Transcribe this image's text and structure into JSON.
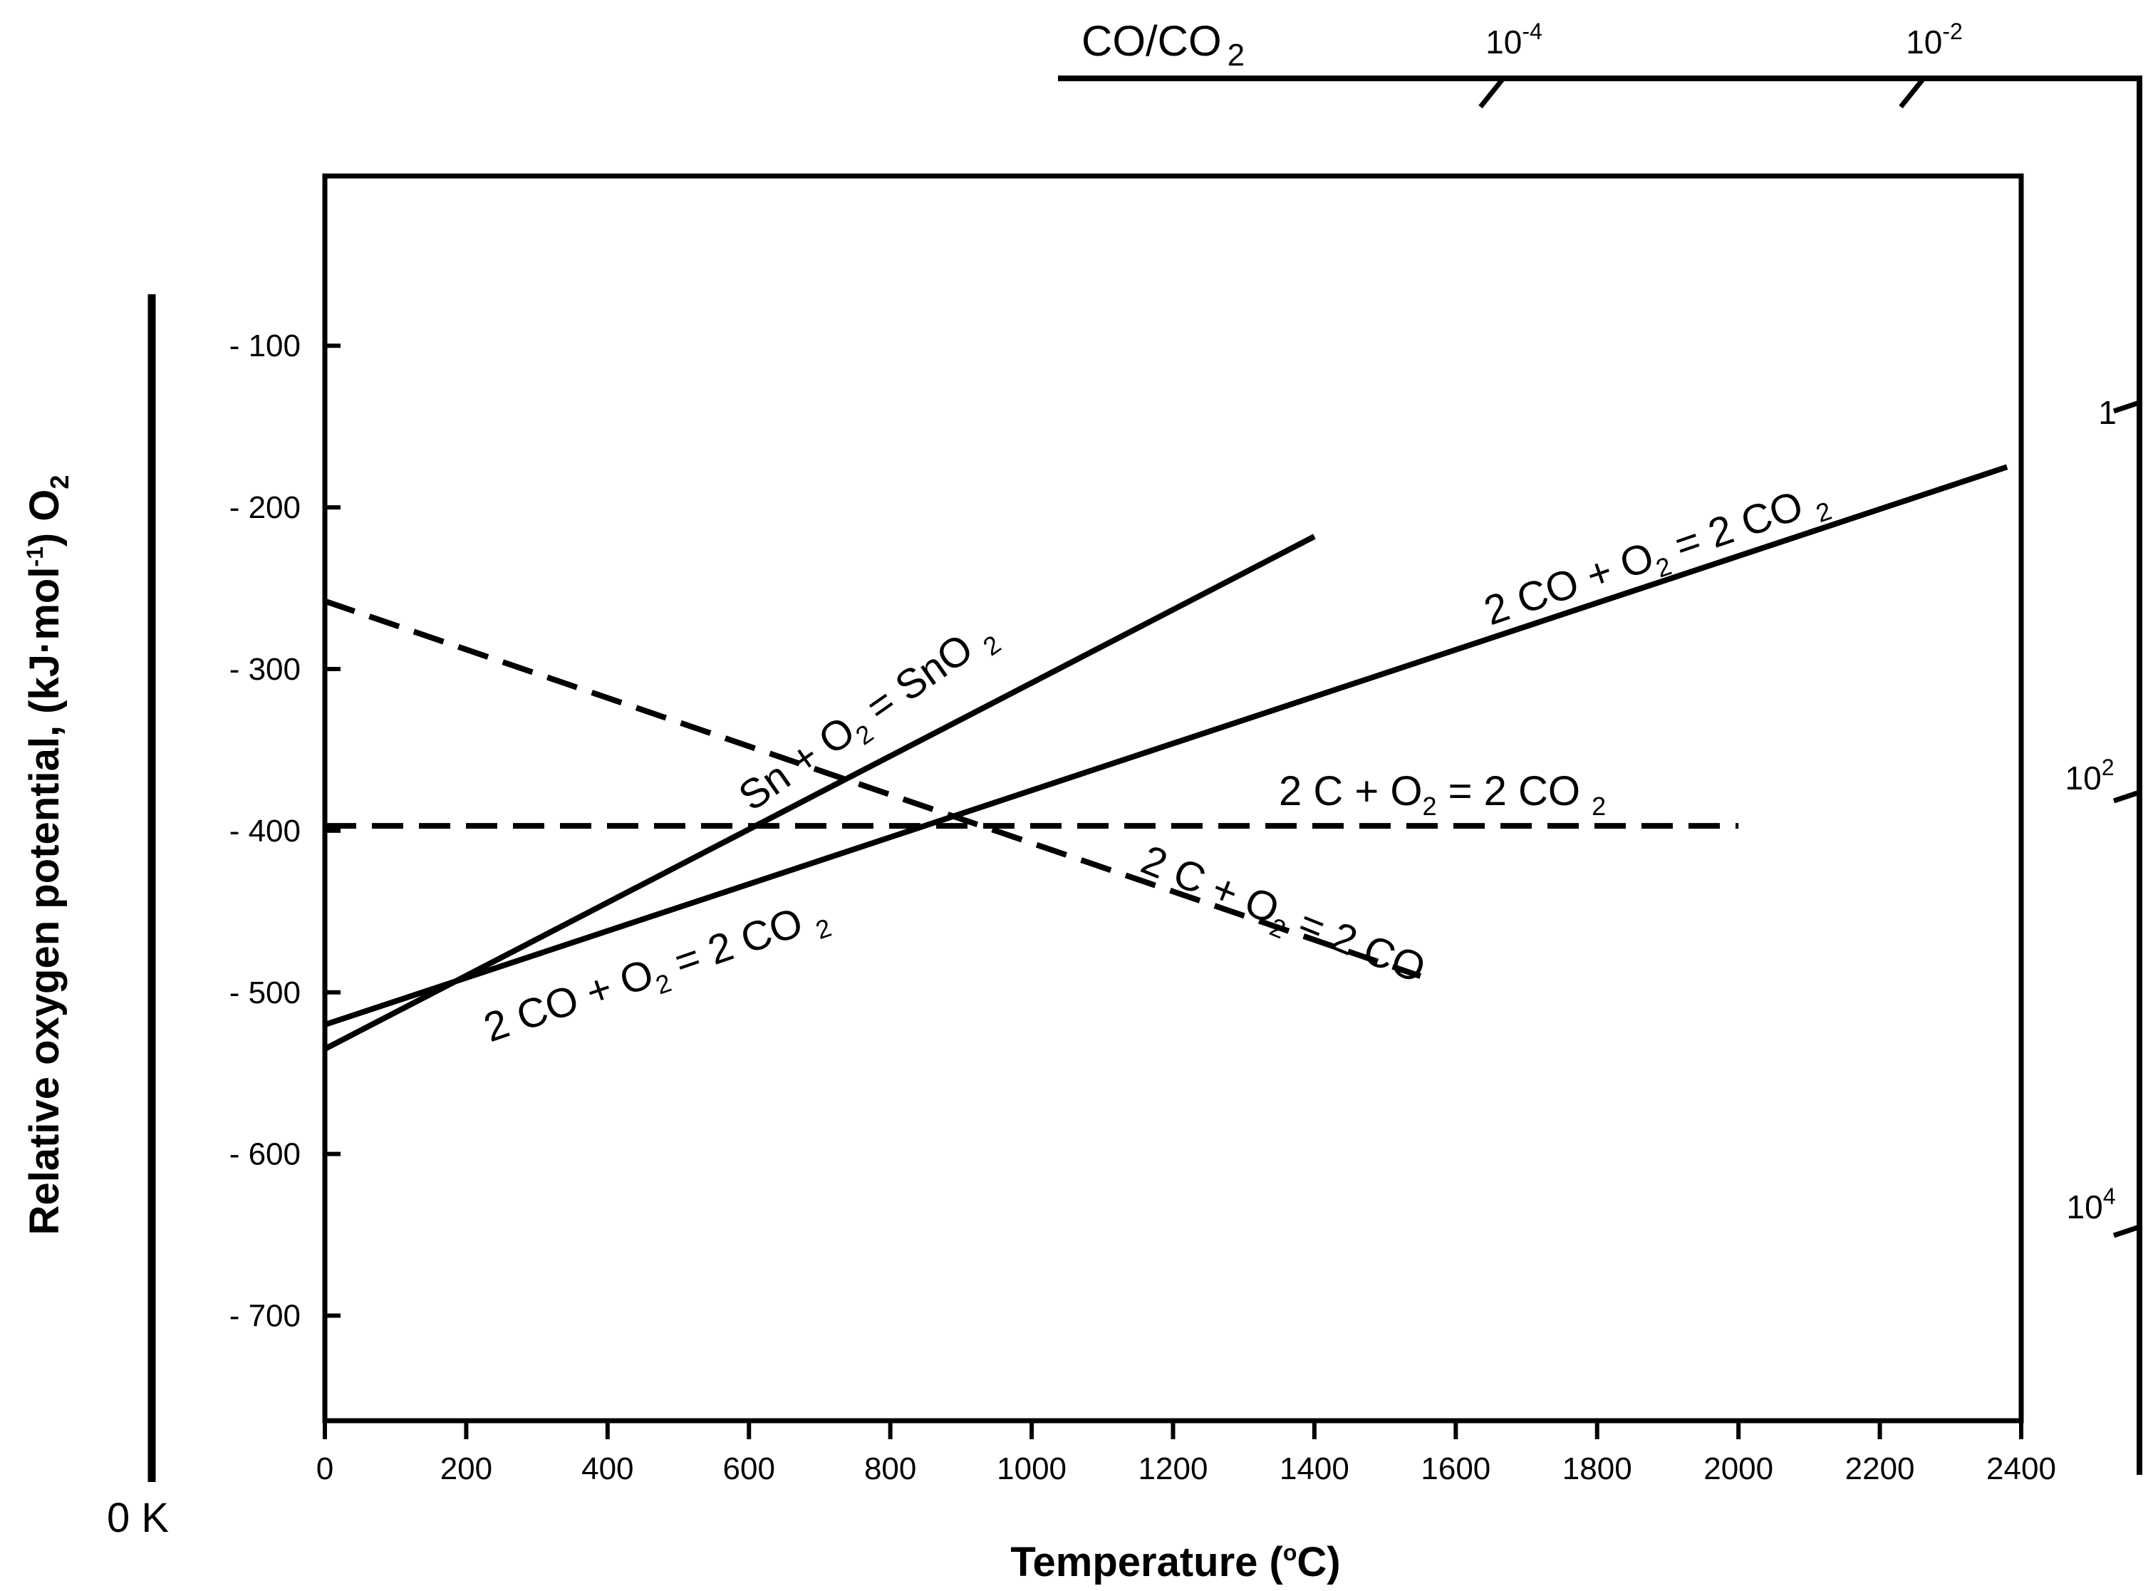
{
  "chart_data": {
    "type": "line",
    "title": "",
    "xlabel": "Temperature (°C)",
    "ylabel": "Relative oxygen potential, (kJ·mol⁻¹) O₂",
    "xlim": [
      0,
      2400
    ],
    "ylim": [
      -765,
      5
    ],
    "x_ticks": [
      0,
      200,
      400,
      600,
      800,
      1000,
      1200,
      1400,
      1600,
      1800,
      2000,
      2200,
      2400
    ],
    "y_ticks": [
      {
        "value": -100,
        "label": "- 100"
      },
      {
        "value": -200,
        "label": "- 200"
      },
      {
        "value": -300,
        "label": "- 300"
      },
      {
        "value": -400,
        "label": "- 400"
      },
      {
        "value": -500,
        "label": "- 500"
      },
      {
        "value": -600,
        "label": "- 600"
      },
      {
        "value": -700,
        "label": "- 700"
      }
    ],
    "zero_kelvin_label": "0 K",
    "series": [
      {
        "name": "Sn + O2 = SnO2",
        "style": "solid",
        "x": [
          0,
          1400
        ],
        "y": [
          -535,
          -218
        ],
        "label": {
          "base": "Sn + O",
          "sub": "2",
          "rest": " =  SnO ",
          "sub2": "2"
        }
      },
      {
        "name": "2CO + O2 = 2CO2",
        "style": "solid",
        "x": [
          0,
          2380
        ],
        "y": [
          -520,
          -175
        ],
        "labels": [
          {
            "base": "2 CO  +  O",
            "sub": "2",
            "rest": " =   2 CO ",
            "sub2": "2"
          },
          {
            "base": "2 CO  +  O",
            "sub": "2",
            "rest": " =  2 CO ",
            "sub2": "2"
          }
        ]
      },
      {
        "name": "2C + O2 = 2CO2",
        "style": "dashed",
        "x": [
          0,
          2000
        ],
        "y": [
          -397,
          -397
        ],
        "label": {
          "base": "2 C  +  O",
          "sub": "2",
          "rest": " =    2 CO ",
          "sub2": "2"
        }
      },
      {
        "name": "2C + O2 = 2CO",
        "style": "dashed",
        "x": [
          0,
          1550
        ],
        "y": [
          -258,
          -490
        ],
        "label": {
          "base": "2 C  +  O",
          "sub": "2",
          "rest": " =   2 CO"
        }
      }
    ],
    "co_co2_scale": {
      "title": "CO/CO",
      "title_sub": "2",
      "marks": [
        {
          "base": "10",
          "exp": "-4"
        },
        {
          "base": "10",
          "exp": "-2"
        },
        {
          "base": "1",
          "exp": ""
        },
        {
          "base": "10",
          "exp": "2"
        },
        {
          "base": "10",
          "exp": "4"
        }
      ]
    }
  }
}
